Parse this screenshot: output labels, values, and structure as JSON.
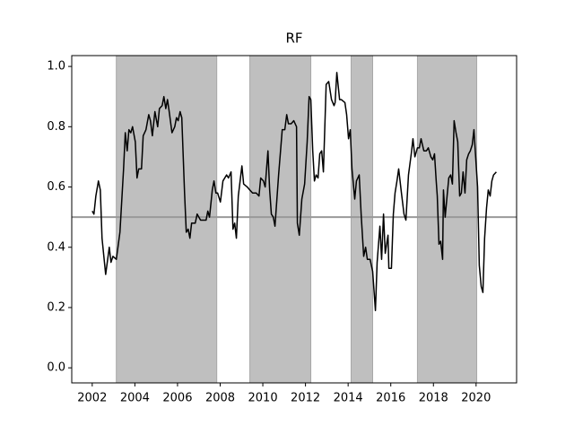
{
  "chart_data": {
    "type": "line",
    "title": "RF",
    "x": [
      2002.0,
      2002.08,
      2002.17,
      2002.29,
      2002.38,
      2002.46,
      2002.63,
      2002.8,
      2002.88,
      2002.97,
      2003.13,
      2003.3,
      2003.47,
      2003.55,
      2003.64,
      2003.72,
      2003.81,
      2003.89,
      2004.02,
      2004.1,
      2004.18,
      2004.31,
      2004.39,
      2004.52,
      2004.65,
      2004.73,
      2004.82,
      2004.94,
      2005.07,
      2005.15,
      2005.28,
      2005.36,
      2005.45,
      2005.53,
      2005.61,
      2005.74,
      2005.87,
      2005.95,
      2006.03,
      2006.12,
      2006.2,
      2006.33,
      2006.41,
      2006.5,
      2006.58,
      2006.66,
      2006.83,
      2006.92,
      2007.08,
      2007.34,
      2007.42,
      2007.5,
      2007.63,
      2007.71,
      2007.8,
      2007.88,
      2008.01,
      2008.13,
      2008.3,
      2008.39,
      2008.51,
      2008.6,
      2008.68,
      2008.76,
      2008.85,
      2009.02,
      2009.1,
      2009.27,
      2009.39,
      2009.52,
      2009.69,
      2009.82,
      2009.9,
      2010.03,
      2010.11,
      2010.24,
      2010.32,
      2010.4,
      2010.49,
      2010.57,
      2010.74,
      2010.91,
      2011.03,
      2011.12,
      2011.2,
      2011.33,
      2011.45,
      2011.58,
      2011.62,
      2011.71,
      2011.83,
      2011.96,
      2012.08,
      2012.17,
      2012.25,
      2012.34,
      2012.42,
      2012.5,
      2012.59,
      2012.67,
      2012.76,
      2012.84,
      2012.97,
      2013.09,
      2013.22,
      2013.34,
      2013.39,
      2013.47,
      2013.6,
      2013.68,
      2013.85,
      2013.93,
      2014.02,
      2014.1,
      2014.18,
      2014.31,
      2014.39,
      2014.52,
      2014.61,
      2014.73,
      2014.82,
      2014.9,
      2015.03,
      2015.15,
      2015.28,
      2015.36,
      2015.49,
      2015.57,
      2015.66,
      2015.74,
      2015.87,
      2015.91,
      2016.03,
      2016.12,
      2016.2,
      2016.29,
      2016.37,
      2016.5,
      2016.62,
      2016.71,
      2016.83,
      2016.96,
      2017.04,
      2017.13,
      2017.25,
      2017.34,
      2017.42,
      2017.55,
      2017.67,
      2017.76,
      2017.88,
      2017.97,
      2018.05,
      2018.13,
      2018.18,
      2018.26,
      2018.34,
      2018.43,
      2018.47,
      2018.55,
      2018.64,
      2018.72,
      2018.81,
      2018.89,
      2018.97,
      2019.06,
      2019.14,
      2019.23,
      2019.31,
      2019.39,
      2019.48,
      2019.56,
      2019.65,
      2019.73,
      2019.82,
      2019.9,
      2019.98,
      2020.07,
      2020.15,
      2020.24,
      2020.32,
      2020.4,
      2020.49,
      2020.57,
      2020.66,
      2020.74,
      2020.82,
      2020.95
    ],
    "series": [
      {
        "color": "#000000",
        "values": [
          0.52,
          0.51,
          0.57,
          0.62,
          0.59,
          0.43,
          0.31,
          0.4,
          0.35,
          0.37,
          0.36,
          0.45,
          0.66,
          0.78,
          0.72,
          0.79,
          0.78,
          0.8,
          0.75,
          0.63,
          0.66,
          0.66,
          0.77,
          0.79,
          0.84,
          0.82,
          0.77,
          0.85,
          0.8,
          0.86,
          0.87,
          0.9,
          0.86,
          0.89,
          0.85,
          0.78,
          0.8,
          0.83,
          0.82,
          0.85,
          0.83,
          0.58,
          0.45,
          0.46,
          0.43,
          0.48,
          0.48,
          0.51,
          0.49,
          0.49,
          0.52,
          0.5,
          0.59,
          0.62,
          0.58,
          0.58,
          0.55,
          0.62,
          0.64,
          0.63,
          0.65,
          0.46,
          0.48,
          0.43,
          0.57,
          0.67,
          0.61,
          0.6,
          0.59,
          0.58,
          0.58,
          0.57,
          0.63,
          0.62,
          0.6,
          0.72,
          0.59,
          0.51,
          0.5,
          0.47,
          0.64,
          0.79,
          0.79,
          0.84,
          0.81,
          0.81,
          0.82,
          0.8,
          0.48,
          0.44,
          0.56,
          0.61,
          0.75,
          0.9,
          0.89,
          0.72,
          0.62,
          0.64,
          0.63,
          0.71,
          0.72,
          0.65,
          0.94,
          0.95,
          0.89,
          0.87,
          0.88,
          0.98,
          0.89,
          0.89,
          0.88,
          0.84,
          0.76,
          0.79,
          0.66,
          0.56,
          0.62,
          0.64,
          0.51,
          0.37,
          0.4,
          0.36,
          0.36,
          0.32,
          0.19,
          0.35,
          0.47,
          0.36,
          0.51,
          0.38,
          0.44,
          0.33,
          0.33,
          0.51,
          0.58,
          0.62,
          0.66,
          0.58,
          0.51,
          0.49,
          0.64,
          0.71,
          0.76,
          0.7,
          0.73,
          0.73,
          0.76,
          0.72,
          0.72,
          0.73,
          0.7,
          0.69,
          0.71,
          0.62,
          0.57,
          0.41,
          0.42,
          0.36,
          0.59,
          0.5,
          0.57,
          0.63,
          0.64,
          0.61,
          0.82,
          0.78,
          0.75,
          0.57,
          0.58,
          0.65,
          0.58,
          0.69,
          0.71,
          0.72,
          0.74,
          0.79,
          0.7,
          0.6,
          0.34,
          0.27,
          0.25,
          0.43,
          0.53,
          0.59,
          0.57,
          0.62,
          0.64,
          0.65
        ]
      }
    ],
    "shaded_spans": [
      [
        2003.13,
        2007.84
      ],
      [
        2009.39,
        2012.25
      ],
      [
        2014.14,
        2015.15
      ],
      [
        2017.25,
        2020.03
      ]
    ],
    "shade_color": "#bfbfbf",
    "hline": 0.5,
    "hline_color": "#999999",
    "xlim": [
      2001.04,
      2021.9
    ],
    "ylim": [
      -0.05,
      1.036
    ],
    "xticks": [
      2002,
      2004,
      2006,
      2008,
      2010,
      2012,
      2014,
      2016,
      2018,
      2020
    ],
    "yticks": [
      {
        "value": 0,
        "label": "0.0"
      },
      0.2,
      0.4,
      0.6,
      0.8,
      {
        "value": 1,
        "label": "1.0"
      }
    ]
  }
}
